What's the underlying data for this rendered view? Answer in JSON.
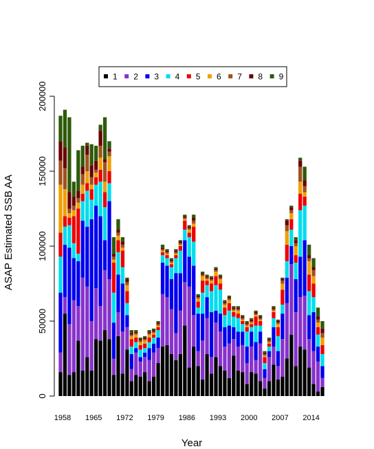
{
  "chart_data": {
    "type": "bar",
    "stacked": true,
    "title": "",
    "xlabel": "Year",
    "ylabel": "ASAP Estimated SSB AA",
    "ylim": [
      0,
      200000
    ],
    "yticks": [
      0,
      50000,
      100000,
      150000,
      200000
    ],
    "xticks": [
      "1958",
      "1965",
      "1972",
      "1979",
      "1986",
      "1993",
      "2000",
      "2007",
      "2014"
    ],
    "legend": {
      "placement": "top",
      "labels": [
        "1",
        "2",
        "3",
        "4",
        "5",
        "6",
        "7",
        "8",
        "9"
      ]
    },
    "grid": false,
    "categories": [
      "1958",
      "1959",
      "1960",
      "1961",
      "1962",
      "1963",
      "1964",
      "1965",
      "1966",
      "1967",
      "1968",
      "1969",
      "1970",
      "1971",
      "1972",
      "1973",
      "1974",
      "1975",
      "1976",
      "1977",
      "1978",
      "1979",
      "1980",
      "1981",
      "1982",
      "1983",
      "1984",
      "1985",
      "1986",
      "1987",
      "1988",
      "1989",
      "1990",
      "1991",
      "1992",
      "1993",
      "1994",
      "1995",
      "1996",
      "1997",
      "1998",
      "1999",
      "2000",
      "2001",
      "2002",
      "2003",
      "2004",
      "2005",
      "2006",
      "2007",
      "2008",
      "2009",
      "2010",
      "2011",
      "2012",
      "2013",
      "2014",
      "2015",
      "2016",
      "2017"
    ],
    "series": [
      {
        "name": "1",
        "color": "#000000",
        "values": [
          16000,
          55000,
          14000,
          16000,
          37000,
          17000,
          26000,
          17000,
          38000,
          37000,
          44000,
          38000,
          14000,
          40000,
          15000,
          31000,
          10000,
          14000,
          13000,
          16000,
          10000,
          13000,
          22000,
          33000,
          34000,
          28000,
          24000,
          28000,
          47000,
          19000,
          33000,
          20000,
          11000,
          28000,
          15000,
          26000,
          20000,
          17000,
          12000,
          27000,
          17000,
          16000,
          8000,
          16000,
          15000,
          10000,
          5000,
          10000,
          21000,
          11000,
          13000,
          25000,
          41000,
          20000,
          33000,
          31000,
          19000,
          8000,
          3000,
          6000
        ]
      },
      {
        "name": "2",
        "color": "#8833CC",
        "values": [
          13000,
          11000,
          34000,
          48000,
          23000,
          62000,
          47000,
          33000,
          34000,
          23000,
          40000,
          40000,
          11000,
          16000,
          28000,
          15000,
          8000,
          15000,
          10000,
          10000,
          14000,
          16000,
          10000,
          35000,
          32000,
          30000,
          18000,
          29000,
          29000,
          54000,
          21000,
          10000,
          26000,
          24000,
          11000,
          23000,
          23000,
          16000,
          23000,
          11000,
          16000,
          18000,
          14000,
          17000,
          9000,
          25000,
          7000,
          16000,
          12000,
          9000,
          25000,
          37000,
          47000,
          36000,
          33000,
          36000,
          19000,
          22000,
          20000,
          6000
        ]
      },
      {
        "name": "3",
        "color": "#0000EE",
        "values": [
          40000,
          35000,
          51000,
          28000,
          30000,
          38000,
          40000,
          68000,
          55000,
          60000,
          20000,
          52000,
          24000,
          25000,
          32000,
          8000,
          10000,
          3000,
          3000,
          3000,
          8000,
          6000,
          7000,
          21000,
          21000,
          20000,
          40000,
          25000,
          28000,
          20000,
          33000,
          25000,
          18000,
          14000,
          30000,
          8000,
          12000,
          13000,
          12000,
          8000,
          10000,
          9000,
          11000,
          10000,
          12000,
          8000,
          6000,
          4000,
          13000,
          10000,
          17000,
          17000,
          12000,
          22000,
          27000,
          37000,
          16000,
          26000,
          10000,
          8000
        ]
      },
      {
        "name": "4",
        "color": "#00DDEE",
        "values": [
          24000,
          12000,
          15000,
          10000,
          5000,
          13000,
          24000,
          13000,
          14000,
          23000,
          22000,
          12000,
          20000,
          15000,
          11000,
          8000,
          5000,
          4000,
          5000,
          3000,
          4000,
          4000,
          5000,
          5000,
          5000,
          8000,
          10000,
          15000,
          7000,
          13000,
          16000,
          4000,
          14000,
          8000,
          14000,
          17000,
          16000,
          8000,
          10000,
          7000,
          9000,
          5000,
          10000,
          3000,
          11000,
          4000,
          4000,
          3000,
          6000,
          10000,
          6000,
          11000,
          11000,
          11000,
          31000,
          23000,
          16000,
          10000,
          8000,
          8000
        ]
      },
      {
        "name": "5",
        "color": "#EE0000",
        "values": [
          16000,
          7000,
          5000,
          18000,
          30000,
          5000,
          5000,
          7000,
          5000,
          8000,
          10000,
          8000,
          20000,
          8000,
          11000,
          8000,
          5000,
          3000,
          3000,
          3000,
          3000,
          2000,
          2000,
          2000,
          2000,
          2000,
          2000,
          3000,
          6000,
          3000,
          10000,
          4000,
          8000,
          3000,
          5000,
          6000,
          4000,
          5000,
          5000,
          3000,
          3000,
          2000,
          3000,
          2000,
          6000,
          3000,
          4000,
          2000,
          4000,
          6000,
          10000,
          11000,
          7000,
          5000,
          11000,
          6000,
          11000,
          9000,
          5000,
          6000
        ]
      },
      {
        "name": "6",
        "color": "#F0A000",
        "values": [
          32000,
          18000,
          3000,
          4000,
          4000,
          6000,
          8000,
          3000,
          3000,
          8000,
          7000,
          10000,
          2000,
          3000,
          2000,
          4000,
          2000,
          2000,
          2000,
          2000,
          2000,
          1000,
          1000,
          1000,
          1000,
          1000,
          1000,
          1000,
          1000,
          2000,
          2000,
          2000,
          3000,
          1000,
          2000,
          3000,
          3000,
          2000,
          2000,
          1000,
          2000,
          1000,
          1000,
          1000,
          1000,
          1000,
          1000,
          1000,
          1000,
          2000,
          4000,
          9000,
          4000,
          6000,
          8000,
          3000,
          9000,
          5000,
          3000,
          5000
        ]
      },
      {
        "name": "7",
        "color": "#A0521E",
        "values": [
          16000,
          14000,
          3000,
          3000,
          3000,
          7000,
          11000,
          5000,
          2000,
          8000,
          13000,
          3000,
          2000,
          2000,
          2000,
          2000,
          1000,
          1000,
          1000,
          1000,
          1000,
          1000,
          1000,
          1000,
          1000,
          1000,
          1000,
          1000,
          1000,
          1000,
          2000,
          1000,
          1000,
          1000,
          1000,
          1000,
          1000,
          1000,
          1000,
          1000,
          1000,
          1000,
          1000,
          1000,
          1000,
          1000,
          1000,
          1000,
          1000,
          1000,
          2000,
          4000,
          2000,
          2000,
          10000,
          4000,
          2000,
          4000,
          2000,
          3000
        ]
      },
      {
        "name": "8",
        "color": "#6B0000",
        "values": [
          13000,
          14000,
          11000,
          6000,
          5000,
          5000,
          6000,
          8000,
          6000,
          10000,
          2000,
          2000,
          2000,
          2000,
          2000,
          2000,
          1000,
          1000,
          1000,
          1000,
          1000,
          1000,
          1000,
          1000,
          1000,
          1000,
          1000,
          1000,
          1000,
          1000,
          2000,
          1000,
          1000,
          1000,
          1000,
          1000,
          1000,
          1000,
          1000,
          1000,
          1000,
          1000,
          1000,
          1000,
          1000,
          1000,
          1000,
          1000,
          1000,
          1000,
          1000,
          3000,
          2000,
          2000,
          4000,
          4000,
          2000,
          2000,
          2000,
          3000
        ]
      },
      {
        "name": "9",
        "color": "#2E5A0A",
        "values": [
          17000,
          25000,
          50000,
          10000,
          27000,
          14000,
          2000,
          14000,
          10000,
          4000,
          28000,
          5000,
          11000,
          7000,
          3000,
          1000,
          2000,
          1000,
          1000,
          1000,
          1000,
          1000,
          1000,
          2000,
          1000,
          1000,
          1000,
          1000,
          1000,
          1000,
          2000,
          1000,
          1000,
          1000,
          1000,
          1000,
          1000,
          1000,
          1000,
          1000,
          1000,
          1000,
          1000,
          1000,
          1000,
          1000,
          1000,
          1000,
          1000,
          1000,
          1000,
          1000,
          1000,
          2000,
          2000,
          9000,
          7000,
          6000,
          6000,
          5000
        ]
      }
    ]
  }
}
